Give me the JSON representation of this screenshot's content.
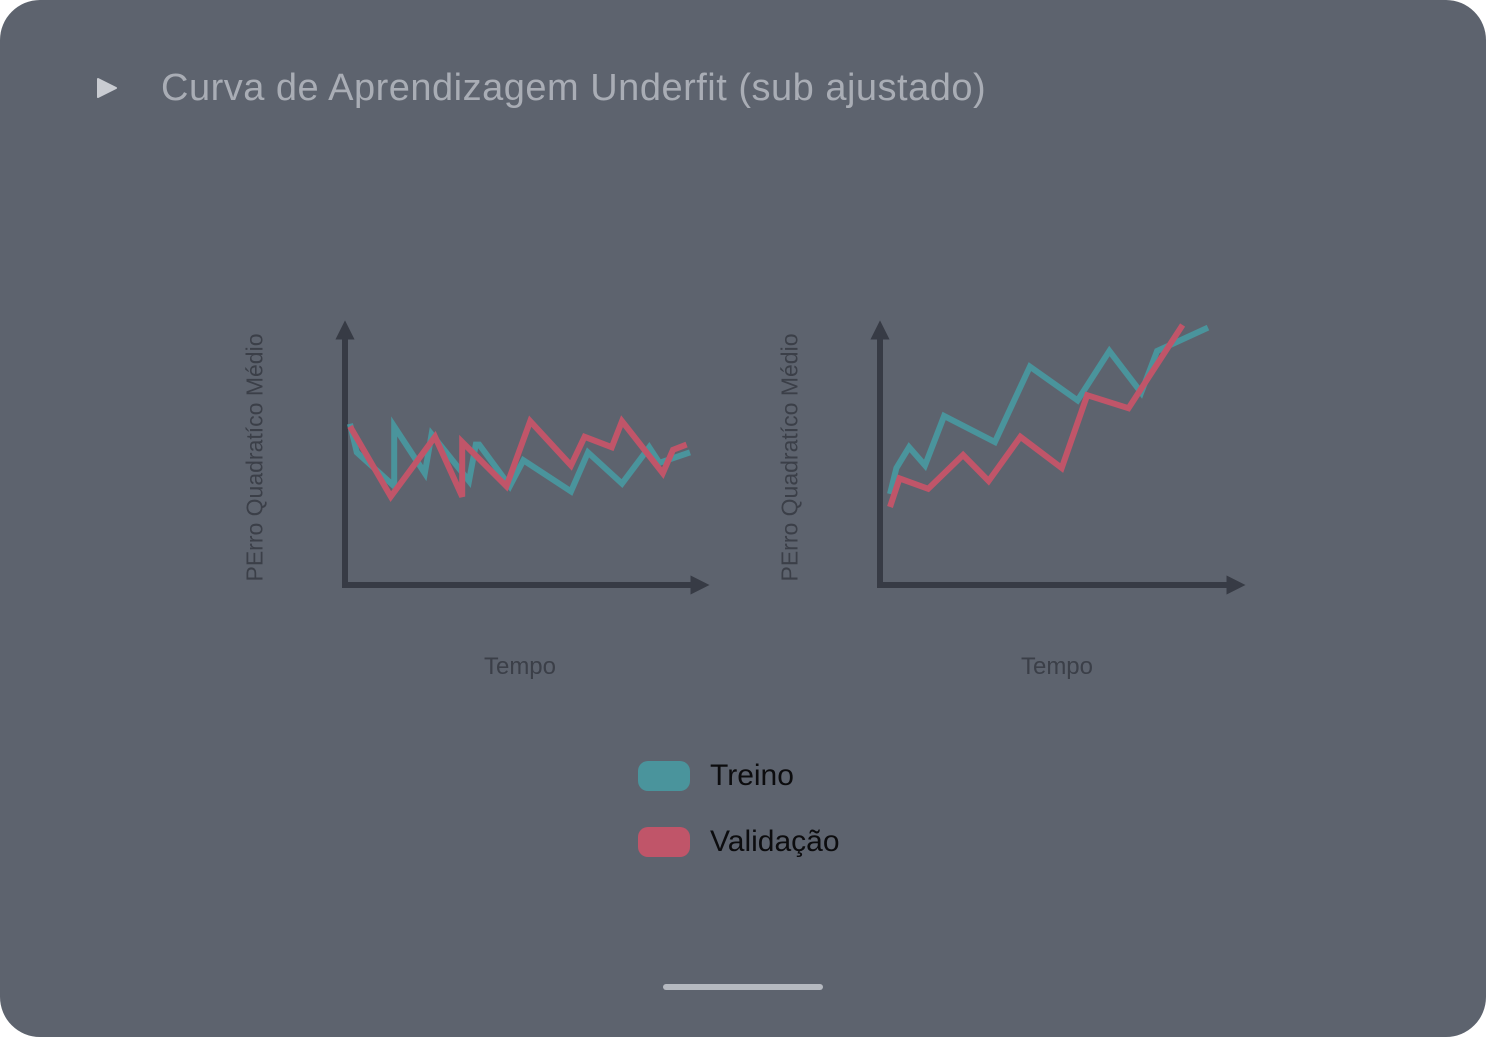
{
  "header": {
    "play_icon": "play-icon",
    "title": "Curva de Aprendizagem Underfit (sub ajustado)"
  },
  "colors": {
    "background": "#5d636e",
    "axis": "#373b45",
    "treino": "#4a949c",
    "validacao": "#c05569",
    "title": "#a9adb5"
  },
  "chart_data": [
    {
      "type": "line",
      "title": "",
      "xlabel": "Tempo",
      "ylabel": "PErro Quadratíco Médio",
      "xlim": [
        0,
        100
      ],
      "ylim": [
        0,
        100
      ],
      "grid": false,
      "series": [
        {
          "name": "Treino",
          "x": [
            0,
            2,
            13,
            13,
            22,
            24,
            35,
            37,
            38,
            47,
            51,
            65,
            70,
            80,
            88,
            91,
            100
          ],
          "y": [
            62,
            51,
            38,
            61,
            43,
            58,
            40,
            54,
            54,
            38,
            48,
            36,
            51,
            39,
            53,
            47,
            51
          ]
        },
        {
          "name": "Validação",
          "x": [
            0,
            12,
            25,
            33,
            33,
            46,
            53,
            65,
            69,
            77,
            80,
            92,
            95,
            99
          ],
          "y": [
            61,
            34,
            57,
            34,
            55,
            38,
            63,
            46,
            57,
            53,
            63,
            43,
            52,
            54
          ]
        }
      ]
    },
    {
      "type": "line",
      "title": "",
      "xlabel": "Tempo",
      "ylabel": "PErro Quadratíco Médio",
      "xlim": [
        0,
        100
      ],
      "ylim": [
        0,
        100
      ],
      "grid": false,
      "series": [
        {
          "name": "Treino",
          "x": [
            0,
            2,
            6,
            11,
            17,
            33,
            44,
            59,
            69,
            79,
            84,
            100
          ],
          "y": [
            35,
            45,
            53,
            46,
            65,
            55,
            84,
            71,
            90,
            74,
            90,
            99
          ]
        },
        {
          "name": "Validação",
          "x": [
            0,
            3,
            12,
            23,
            31,
            41,
            54,
            62,
            75,
            92
          ],
          "y": [
            30,
            41,
            37,
            50,
            40,
            57,
            45,
            73,
            68,
            100
          ]
        }
      ]
    }
  ],
  "legend": {
    "items": [
      {
        "label": "Treino",
        "color": "#4a949c"
      },
      {
        "label": "Validação",
        "color": "#c05569"
      }
    ]
  }
}
